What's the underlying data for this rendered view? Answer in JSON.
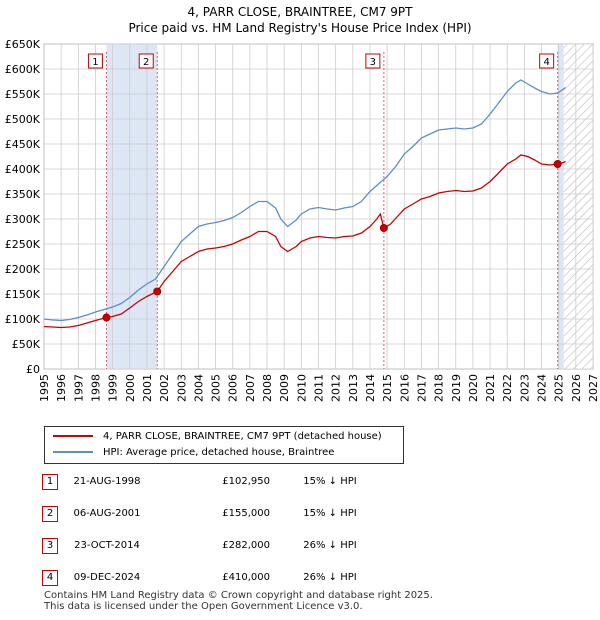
{
  "chart_data": {
    "type": "line",
    "title": "4, PARR CLOSE, BRAINTREE, CM7 9PT",
    "subtitle": "Price paid vs. HM Land Registry's House Price Index (HPI)",
    "x_label": "",
    "y_label": "",
    "xlim": [
      1995,
      2027
    ],
    "ylim": [
      0,
      650000
    ],
    "x_ticks": [
      "1995",
      "1996",
      "1997",
      "1998",
      "1999",
      "2000",
      "2001",
      "2002",
      "2003",
      "2004",
      "2005",
      "2006",
      "2007",
      "2008",
      "2009",
      "2010",
      "2011",
      "2012",
      "2013",
      "2014",
      "2015",
      "2016",
      "2017",
      "2018",
      "2019",
      "2020",
      "2021",
      "2022",
      "2023",
      "2024",
      "2025",
      "2026",
      "2027"
    ],
    "y_ticks": [
      {
        "value": 0,
        "label": "£0"
      },
      {
        "value": 50000,
        "label": "£50K"
      },
      {
        "value": 100000,
        "label": "£100K"
      },
      {
        "value": 150000,
        "label": "£150K"
      },
      {
        "value": 200000,
        "label": "£200K"
      },
      {
        "value": 250000,
        "label": "£250K"
      },
      {
        "value": 300000,
        "label": "£300K"
      },
      {
        "value": 350000,
        "label": "£350K"
      },
      {
        "value": 400000,
        "label": "£400K"
      },
      {
        "value": 450000,
        "label": "£450K"
      },
      {
        "value": 500000,
        "label": "£500K"
      },
      {
        "value": 550000,
        "label": "£550K"
      },
      {
        "value": 600000,
        "label": "£600K"
      },
      {
        "value": 650000,
        "label": "£650K"
      }
    ],
    "hatch_from_year": 2025.3,
    "series": [
      {
        "name": "4, PARR CLOSE, BRAINTREE, CM7 9PT (detached house)",
        "color": "#cc0000",
        "points": [
          [
            1995.0,
            85000
          ],
          [
            1995.5,
            84000
          ],
          [
            1996.0,
            83000
          ],
          [
            1996.5,
            84000
          ],
          [
            1997.0,
            87000
          ],
          [
            1997.5,
            92000
          ],
          [
            1998.0,
            97000
          ],
          [
            1998.64,
            102950
          ],
          [
            1999.0,
            105000
          ],
          [
            1999.5,
            110000
          ],
          [
            2000.0,
            122000
          ],
          [
            2000.5,
            135000
          ],
          [
            2001.0,
            145000
          ],
          [
            2001.6,
            155000
          ],
          [
            2002.0,
            175000
          ],
          [
            2002.5,
            195000
          ],
          [
            2003.0,
            215000
          ],
          [
            2003.5,
            225000
          ],
          [
            2004.0,
            235000
          ],
          [
            2004.5,
            240000
          ],
          [
            2005.0,
            242000
          ],
          [
            2005.5,
            245000
          ],
          [
            2006.0,
            250000
          ],
          [
            2006.5,
            258000
          ],
          [
            2007.0,
            265000
          ],
          [
            2007.5,
            275000
          ],
          [
            2008.0,
            275000
          ],
          [
            2008.5,
            265000
          ],
          [
            2008.8,
            245000
          ],
          [
            2009.2,
            235000
          ],
          [
            2009.7,
            245000
          ],
          [
            2010.0,
            255000
          ],
          [
            2010.5,
            262000
          ],
          [
            2011.0,
            265000
          ],
          [
            2011.5,
            263000
          ],
          [
            2012.0,
            262000
          ],
          [
            2012.5,
            265000
          ],
          [
            2013.0,
            266000
          ],
          [
            2013.5,
            272000
          ],
          [
            2014.0,
            285000
          ],
          [
            2014.4,
            300000
          ],
          [
            2014.6,
            310000
          ],
          [
            2014.81,
            282000
          ],
          [
            2015.2,
            290000
          ],
          [
            2015.6,
            305000
          ],
          [
            2016.0,
            320000
          ],
          [
            2016.5,
            330000
          ],
          [
            2017.0,
            340000
          ],
          [
            2017.5,
            345000
          ],
          [
            2018.0,
            352000
          ],
          [
            2018.5,
            355000
          ],
          [
            2019.0,
            357000
          ],
          [
            2019.5,
            355000
          ],
          [
            2020.0,
            356000
          ],
          [
            2020.5,
            362000
          ],
          [
            2021.0,
            375000
          ],
          [
            2021.5,
            392000
          ],
          [
            2022.0,
            410000
          ],
          [
            2022.5,
            420000
          ],
          [
            2022.8,
            428000
          ],
          [
            2023.2,
            425000
          ],
          [
            2023.6,
            418000
          ],
          [
            2024.0,
            410000
          ],
          [
            2024.5,
            408000
          ],
          [
            2024.94,
            410000
          ],
          [
            2025.2,
            412000
          ],
          [
            2025.4,
            415000
          ]
        ]
      },
      {
        "name": "HPI: Average price, detached house, Braintree",
        "color": "#5b8fc7",
        "points": [
          [
            1995.0,
            100000
          ],
          [
            1995.5,
            98000
          ],
          [
            1996.0,
            97000
          ],
          [
            1996.5,
            99000
          ],
          [
            1997.0,
            103000
          ],
          [
            1997.5,
            108000
          ],
          [
            1998.0,
            114000
          ],
          [
            1998.5,
            119000
          ],
          [
            1999.0,
            124000
          ],
          [
            1999.5,
            131000
          ],
          [
            2000.0,
            143000
          ],
          [
            2000.5,
            158000
          ],
          [
            2001.0,
            170000
          ],
          [
            2001.5,
            180000
          ],
          [
            2002.0,
            205000
          ],
          [
            2002.5,
            230000
          ],
          [
            2003.0,
            255000
          ],
          [
            2003.5,
            270000
          ],
          [
            2004.0,
            285000
          ],
          [
            2004.5,
            290000
          ],
          [
            2005.0,
            293000
          ],
          [
            2005.5,
            297000
          ],
          [
            2006.0,
            303000
          ],
          [
            2006.5,
            313000
          ],
          [
            2007.0,
            325000
          ],
          [
            2007.5,
            335000
          ],
          [
            2008.0,
            335000
          ],
          [
            2008.5,
            322000
          ],
          [
            2008.8,
            300000
          ],
          [
            2009.2,
            285000
          ],
          [
            2009.7,
            298000
          ],
          [
            2010.0,
            310000
          ],
          [
            2010.5,
            320000
          ],
          [
            2011.0,
            323000
          ],
          [
            2011.5,
            320000
          ],
          [
            2012.0,
            318000
          ],
          [
            2012.5,
            322000
          ],
          [
            2013.0,
            325000
          ],
          [
            2013.5,
            335000
          ],
          [
            2014.0,
            355000
          ],
          [
            2014.5,
            370000
          ],
          [
            2015.0,
            385000
          ],
          [
            2015.5,
            405000
          ],
          [
            2016.0,
            430000
          ],
          [
            2016.5,
            445000
          ],
          [
            2017.0,
            462000
          ],
          [
            2017.5,
            470000
          ],
          [
            2018.0,
            478000
          ],
          [
            2018.5,
            480000
          ],
          [
            2019.0,
            482000
          ],
          [
            2019.5,
            480000
          ],
          [
            2020.0,
            482000
          ],
          [
            2020.5,
            490000
          ],
          [
            2021.0,
            510000
          ],
          [
            2021.5,
            532000
          ],
          [
            2022.0,
            555000
          ],
          [
            2022.5,
            572000
          ],
          [
            2022.8,
            578000
          ],
          [
            2023.2,
            570000
          ],
          [
            2023.6,
            562000
          ],
          [
            2024.0,
            555000
          ],
          [
            2024.5,
            550000
          ],
          [
            2024.94,
            552000
          ],
          [
            2025.2,
            558000
          ],
          [
            2025.4,
            563000
          ]
        ]
      }
    ],
    "sales": [
      {
        "label": "1",
        "year": 1998.64,
        "price": 102950
      },
      {
        "label": "2",
        "year": 2001.6,
        "price": 155000
      },
      {
        "label": "3",
        "year": 2014.81,
        "price": 282000
      },
      {
        "label": "4",
        "year": 2024.94,
        "price": 410000
      }
    ]
  },
  "legend": {
    "property": "4, PARR CLOSE, BRAINTREE, CM7 9PT (detached house)",
    "hpi": "HPI: Average price, detached house, Braintree"
  },
  "transactions": [
    {
      "num": "1",
      "date": "21-AUG-1998",
      "price": "£102,950",
      "hpi": "15% ↓ HPI"
    },
    {
      "num": "2",
      "date": "06-AUG-2001",
      "price": "£155,000",
      "hpi": "15% ↓ HPI"
    },
    {
      "num": "3",
      "date": "23-OCT-2014",
      "price": "£282,000",
      "hpi": "26% ↓ HPI"
    },
    {
      "num": "4",
      "date": "09-DEC-2024",
      "price": "£410,000",
      "hpi": "26% ↓ HPI"
    }
  ],
  "footer": {
    "line1": "Contains HM Land Registry data © Crown copyright and database right 2025.",
    "line2": "This data is licensed under the Open Government Licence v3.0."
  },
  "colors": {
    "property": "#cc0000",
    "hpi": "#5b8fc7",
    "sale_band": "#dde6f5",
    "grid": "#cccccc"
  }
}
